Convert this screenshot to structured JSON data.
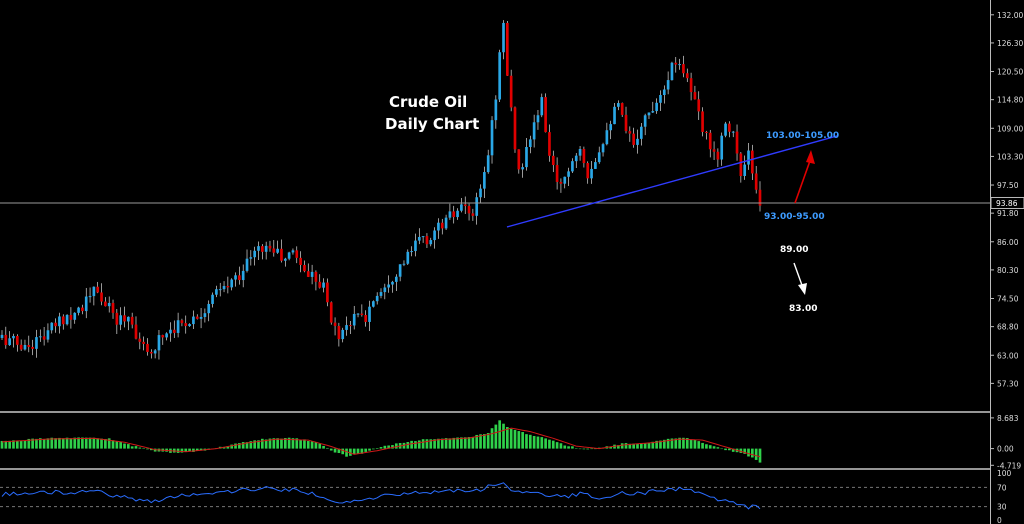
{
  "chart_data": [
    {
      "type": "candlestick",
      "title_line1": "Crude Oil",
      "title_line2": "Daily Chart",
      "ylim": [
        51.5,
        135
      ],
      "yticks": [
        "132.00",
        "126.30",
        "120.50",
        "114.80",
        "109.00",
        "103.30",
        "97.50",
        "91.80",
        "86.00",
        "80.30",
        "74.50",
        "68.80",
        "63.00",
        "57.30"
      ],
      "ytick_values": [
        132.0,
        126.3,
        120.5,
        114.8,
        109.0,
        103.3,
        97.5,
        91.8,
        86.0,
        80.3,
        74.5,
        68.8,
        63.0,
        57.3
      ],
      "current_price_label": "93.86",
      "current_price": 93.86,
      "annotations": [
        "103.00-105.00",
        "93.00-95.00",
        "89.00",
        "83.00"
      ],
      "trendline": {
        "start": [
          0,
          89.0
        ],
        "end": [
          1,
          107.5
        ]
      },
      "close_path": [
        [
          0,
          66.5
        ],
        [
          3,
          65.8
        ],
        [
          6,
          64.5
        ],
        [
          9,
          66.0
        ],
        [
          12,
          67.5
        ],
        [
          15,
          70.0
        ],
        [
          18,
          71.5
        ],
        [
          21,
          73.0
        ],
        [
          24,
          76.0
        ],
        [
          27,
          73.5
        ],
        [
          30,
          70.0
        ],
        [
          33,
          71.0
        ],
        [
          36,
          66.0
        ],
        [
          38,
          62.5
        ],
        [
          41,
          66.5
        ],
        [
          44,
          68.5
        ],
        [
          47,
          69.5
        ],
        [
          50,
          70.5
        ],
        [
          53,
          72.5
        ],
        [
          56,
          75.5
        ],
        [
          59,
          77.0
        ],
        [
          62,
          79.5
        ],
        [
          65,
          83.0
        ],
        [
          68,
          85.0
        ],
        [
          71,
          84.5
        ],
        [
          74,
          82.0
        ],
        [
          76,
          84.5
        ],
        [
          79,
          80.0
        ],
        [
          82,
          79.0
        ],
        [
          84,
          77.0
        ],
        [
          86,
          70.0
        ],
        [
          88,
          67.0
        ],
        [
          90,
          69.5
        ],
        [
          93,
          71.0
        ],
        [
          95,
          70.5
        ],
        [
          97,
          74.5
        ],
        [
          100,
          77.5
        ],
        [
          103,
          80.0
        ],
        [
          106,
          83.0
        ],
        [
          109,
          86.5
        ],
        [
          111,
          86.0
        ],
        [
          114,
          89.0
        ],
        [
          117,
          91.0
        ],
        [
          120,
          92.5
        ],
        [
          123,
          91.5
        ],
        [
          125,
          96.0
        ],
        [
          127,
          104.0
        ],
        [
          129,
          116.0
        ],
        [
          130,
          124.0
        ],
        [
          131,
          130.0
        ],
        [
          132,
          120.0
        ],
        [
          133,
          112.0
        ],
        [
          135,
          100.0
        ],
        [
          137,
          104.0
        ],
        [
          139,
          110.0
        ],
        [
          141,
          114.0
        ],
        [
          143,
          104.0
        ],
        [
          145,
          97.0
        ],
        [
          147,
          99.5
        ],
        [
          149,
          102.5
        ],
        [
          151,
          106.0
        ],
        [
          153,
          100.0
        ],
        [
          155,
          103.0
        ],
        [
          157,
          107.0
        ],
        [
          159,
          111.0
        ],
        [
          161,
          113.5
        ],
        [
          163,
          108.0
        ],
        [
          165,
          106.0
        ],
        [
          167,
          110.0
        ],
        [
          169,
          112.0
        ],
        [
          171,
          115.0
        ],
        [
          173,
          118.0
        ],
        [
          175,
          121.5
        ],
        [
          177,
          123.0
        ],
        [
          179,
          119.0
        ],
        [
          181,
          114.0
        ],
        [
          183,
          108.5
        ],
        [
          185,
          106.0
        ],
        [
          187,
          103.5
        ],
        [
          189,
          111.0
        ],
        [
          191,
          108.0
        ],
        [
          193,
          99.0
        ],
        [
          195,
          103.5
        ],
        [
          197,
          95.5
        ],
        [
          198,
          94.0
        ]
      ],
      "volatility": 1.9,
      "seed": 17
    },
    {
      "type": "histogram",
      "indicator": "macd",
      "yticks": [
        "8.683",
        "0.00",
        "-4.719"
      ],
      "ytick_values": [
        8.683,
        0.0,
        -4.719
      ],
      "ylim": [
        -5.2,
        9.5
      ],
      "path": [
        [
          0,
          2.0
        ],
        [
          10,
          2.8
        ],
        [
          20,
          3.2
        ],
        [
          28,
          2.8
        ],
        [
          34,
          0.8
        ],
        [
          40,
          -0.8
        ],
        [
          46,
          -1.2
        ],
        [
          52,
          -0.6
        ],
        [
          58,
          0.5
        ],
        [
          64,
          2.0
        ],
        [
          70,
          2.9
        ],
        [
          76,
          3.0
        ],
        [
          82,
          2.0
        ],
        [
          86,
          -0.5
        ],
        [
          90,
          -2.2
        ],
        [
          94,
          -1.3
        ],
        [
          98,
          0.2
        ],
        [
          104,
          1.5
        ],
        [
          110,
          2.5
        ],
        [
          116,
          3.0
        ],
        [
          122,
          3.2
        ],
        [
          127,
          4.5
        ],
        [
          130,
          7.8
        ],
        [
          133,
          5.5
        ],
        [
          137,
          4.2
        ],
        [
          142,
          3.0
        ],
        [
          147,
          1.0
        ],
        [
          152,
          -0.3
        ],
        [
          157,
          0.3
        ],
        [
          162,
          1.4
        ],
        [
          167,
          1.6
        ],
        [
          172,
          2.2
        ],
        [
          177,
          3.2
        ],
        [
          181,
          2.6
        ],
        [
          186,
          0.5
        ],
        [
          190,
          -0.6
        ],
        [
          194,
          -1.6
        ],
        [
          198,
          -3.8
        ]
      ],
      "signal_path": [
        [
          0,
          1.9
        ],
        [
          12,
          2.7
        ],
        [
          24,
          2.9
        ],
        [
          32,
          1.8
        ],
        [
          40,
          -0.3
        ],
        [
          48,
          -0.9
        ],
        [
          56,
          0.0
        ],
        [
          64,
          1.6
        ],
        [
          72,
          2.7
        ],
        [
          80,
          2.4
        ],
        [
          86,
          0.6
        ],
        [
          92,
          -1.6
        ],
        [
          98,
          -0.6
        ],
        [
          106,
          1.2
        ],
        [
          114,
          2.5
        ],
        [
          122,
          3.0
        ],
        [
          128,
          4.2
        ],
        [
          133,
          5.8
        ],
        [
          138,
          4.8
        ],
        [
          144,
          2.9
        ],
        [
          150,
          0.7
        ],
        [
          156,
          0.0
        ],
        [
          162,
          1.0
        ],
        [
          170,
          1.7
        ],
        [
          177,
          2.7
        ],
        [
          183,
          2.4
        ],
        [
          188,
          0.8
        ],
        [
          193,
          -0.8
        ],
        [
          198,
          -2.3
        ]
      ],
      "seed": 29
    },
    {
      "type": "line",
      "indicator": "rsi",
      "yticks": [
        "100",
        "70",
        "30",
        "0"
      ],
      "ytick_values": [
        100,
        70,
        30,
        0
      ],
      "ylim": [
        0,
        100
      ],
      "path": [
        [
          0,
          55
        ],
        [
          8,
          58
        ],
        [
          16,
          60
        ],
        [
          24,
          62
        ],
        [
          30,
          52
        ],
        [
          36,
          44
        ],
        [
          40,
          42
        ],
        [
          46,
          52
        ],
        [
          54,
          58
        ],
        [
          62,
          64
        ],
        [
          70,
          68
        ],
        [
          76,
          64
        ],
        [
          80,
          60
        ],
        [
          84,
          46
        ],
        [
          88,
          35
        ],
        [
          92,
          42
        ],
        [
          98,
          50
        ],
        [
          106,
          58
        ],
        [
          114,
          62
        ],
        [
          120,
          65
        ],
        [
          124,
          62
        ],
        [
          128,
          75
        ],
        [
          131,
          82
        ],
        [
          134,
          58
        ],
        [
          138,
          60
        ],
        [
          143,
          52
        ],
        [
          147,
          50
        ],
        [
          151,
          56
        ],
        [
          156,
          50
        ],
        [
          162,
          57
        ],
        [
          168,
          58
        ],
        [
          174,
          66
        ],
        [
          178,
          68
        ],
        [
          182,
          58
        ],
        [
          186,
          46
        ],
        [
          190,
          40
        ],
        [
          194,
          30
        ],
        [
          198,
          28
        ]
      ],
      "seed": 41
    }
  ]
}
